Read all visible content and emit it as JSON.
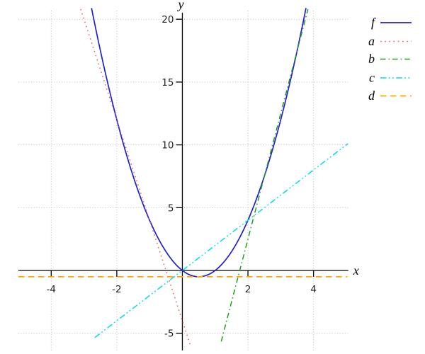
{
  "chart_data": {
    "type": "line",
    "title": "",
    "xlabel": "x",
    "ylabel": "y",
    "xlim": [
      -5.0,
      5.06
    ],
    "ylim": [
      -6.48,
      20.8
    ],
    "grid": true,
    "legend_position": "top-right-outside",
    "x_ticks": [
      -4,
      -2,
      2,
      4
    ],
    "x_tick_labels": [
      "-4",
      "-2",
      "2",
      "4"
    ],
    "y_ticks": [
      -5,
      5,
      10,
      15,
      20
    ],
    "y_tick_labels": [
      "-5",
      "5",
      "10",
      "15",
      "20"
    ],
    "series": [
      {
        "name": "f",
        "kind": "polynomial",
        "coeffs": [
          0,
          -2,
          2
        ],
        "equation": "f(x) = 2x^2 - 2x",
        "domain": [
          -2.77,
          3.77
        ],
        "color": "#2222cc",
        "style": "solid",
        "width": 1.7,
        "key_points": [
          [
            0,
            0
          ],
          [
            1,
            0
          ],
          [
            0.5,
            -0.5
          ],
          [
            2,
            4
          ]
        ]
      },
      {
        "name": "a",
        "kind": "polynomial",
        "coeffs": [
          -4,
          -8
        ],
        "equation": "a(x) = -8x - 4",
        "domain": [
          -3.1,
          0.2625
        ],
        "color": "#e86060",
        "style": "dotted",
        "width": 1.5,
        "key_points": [
          [
            -2,
            12
          ],
          [
            -1,
            4
          ],
          [
            -0.5,
            0
          ]
        ]
      },
      {
        "name": "b",
        "kind": "polynomial",
        "coeffs": [
          -17.5,
          10
        ],
        "equation": "b(x) = 10x - 17.5",
        "domain": [
          1.185,
          3.83
        ],
        "color": "#1fa01f",
        "style": "dashdot",
        "width": 1.5,
        "key_points": [
          [
            2.5,
            7.5
          ],
          [
            3.5,
            17.5
          ],
          [
            1.75,
            0
          ]
        ]
      },
      {
        "name": "c",
        "kind": "polynomial",
        "coeffs": [
          0,
          2
        ],
        "equation": "c(x) = 2x",
        "domain": [
          -2.67,
          5.05
        ],
        "color": "#00dede",
        "style": "dashdotdot",
        "width": 1.5,
        "key_points": [
          [
            0,
            0
          ],
          [
            2,
            4
          ],
          [
            5,
            10
          ]
        ]
      },
      {
        "name": "d",
        "kind": "polynomial",
        "coeffs": [
          -0.5
        ],
        "equation": "d(x) = -0.5",
        "domain": [
          -5.0,
          5.03
        ],
        "color": "#ffa500",
        "style": "dashed",
        "width": 1.7,
        "key_points": [
          [
            0.5,
            -0.5
          ]
        ]
      }
    ],
    "legend": [
      {
        "label": "f"
      },
      {
        "label": "a"
      },
      {
        "label": "b"
      },
      {
        "label": "c"
      },
      {
        "label": "d"
      }
    ],
    "colors": {
      "axis": "#000000",
      "grid": "#bbbbbb",
      "tick_text": "#222222"
    }
  }
}
